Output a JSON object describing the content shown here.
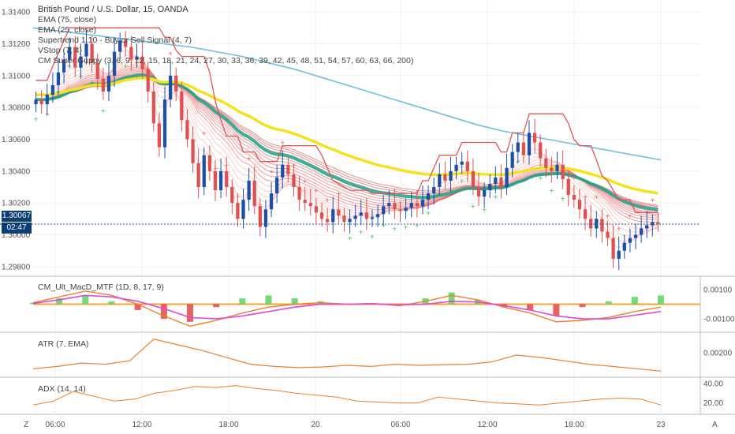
{
  "header": {
    "title": "British Pound / U.S. Dollar, 15, OANDA",
    "indicators": [
      "EMA (75, close)",
      "EMA (25, close)",
      "Supertrend 1.10 - Buy or Sell Signal (4, 7)",
      "VStop (7, 4)",
      "CM Super Guppy (3, 6, 9, 12, 15, 18, 21, 24, 27, 30, 33, 36, 39, 42, 45, 48, 51, 54, 57, 60, 63, 66, 200)"
    ]
  },
  "price_tag": {
    "value": "1.30067",
    "countdown": "02:47"
  },
  "panes": {
    "macd_label": "CM_Ult_MacD_MTF (1D, 8, 17, 9)",
    "atr_label": "ATR (7, EMA)",
    "adx_label": "ADX (14, 14)"
  },
  "corner": {
    "left": "Z",
    "right": "A"
  },
  "colors": {
    "ema75": "#6ec1dc",
    "guppy_up": "#1aa88e",
    "guppy_down": "#e84b4b",
    "yellow": "#f5e21f",
    "supertrend": "#e05555",
    "vstop_up": "#3fb04a",
    "vstop_down": "#e05555",
    "bull": "#1e4fa8",
    "bear": "#e05050",
    "grid": "#eef0f4",
    "current_price": "#1b5a9c"
  },
  "chart_data": [
    {
      "type": "candlestick",
      "title": "British Pound / U.S. Dollar, 15, OANDA",
      "x_ticks": [
        "06:00",
        "12:00",
        "18:00",
        "20",
        "06:00",
        "12:00",
        "18:00",
        "23"
      ],
      "y_ticks": [
        "1.29800",
        "1.30000",
        "1.30200",
        "1.30400",
        "1.30600",
        "1.30800",
        "1.31000",
        "1.31200",
        "1.31400"
      ],
      "ylim": [
        1.2975,
        1.3145
      ],
      "current_price": 1.30067,
      "closes": [
        1.3085,
        1.3082,
        1.3088,
        1.3094,
        1.3102,
        1.311,
        1.3118,
        1.3105,
        1.3112,
        1.312,
        1.3108,
        1.3098,
        1.309,
        1.31,
        1.3115,
        1.3122,
        1.3118,
        1.311,
        1.3112,
        1.3104,
        1.309,
        1.307,
        1.3055,
        1.3085,
        1.31,
        1.309,
        1.3072,
        1.306,
        1.3045,
        1.303,
        1.305,
        1.304,
        1.3028,
        1.304,
        1.303,
        1.302,
        1.301,
        1.3022,
        1.3034,
        1.3018,
        1.3005,
        1.3016,
        1.3026,
        1.3036,
        1.3044,
        1.3038,
        1.303,
        1.3022,
        1.302,
        1.3018,
        1.3014,
        1.301,
        1.3008,
        1.3016,
        1.3012,
        1.3008,
        1.301,
        1.3012,
        1.3014,
        1.301,
        1.3011,
        1.3013,
        1.3018,
        1.302,
        1.3016,
        1.3015,
        1.3017,
        1.302,
        1.3018,
        1.3022,
        1.3026,
        1.303,
        1.3038,
        1.3034,
        1.304,
        1.3044,
        1.3046,
        1.304,
        1.303,
        1.3024,
        1.3028,
        1.3032,
        1.3036,
        1.303,
        1.3042,
        1.3052,
        1.3058,
        1.305,
        1.3064,
        1.3058,
        1.3048,
        1.3042,
        1.304,
        1.3044,
        1.3035,
        1.3025,
        1.3022,
        1.3016,
        1.301,
        1.3004,
        1.301,
        1.3002,
        1.2998,
        1.2985,
        1.299,
        1.2995,
        1.2998,
        1.3,
        1.3004,
        1.3006,
        1.3008,
        1.3007
      ],
      "ema75": [
        1.313,
        1.3128,
        1.3126,
        1.3124,
        1.3122,
        1.312,
        1.3118,
        1.3115,
        1.3112,
        1.3108,
        1.3104,
        1.3099,
        1.3094,
        1.3089,
        1.3084,
        1.3079,
        1.3074,
        1.3069,
        1.3065,
        1.3062,
        1.3059,
        1.3056,
        1.3053,
        1.305,
        1.3047
      ],
      "indicator_ticks": {
        "macd": [
          "0.00100",
          "-0.00100"
        ],
        "atr": [
          "0.00200"
        ],
        "adx": [
          "40.00",
          "20.00"
        ]
      },
      "atr": [
        0.0013,
        0.0014,
        0.00155,
        0.0015,
        0.00165,
        0.0026,
        0.00235,
        0.0021,
        0.0018,
        0.0015,
        0.0014,
        0.00135,
        0.00138,
        0.00145,
        0.0014,
        0.0015,
        0.00145,
        0.00148,
        0.0015,
        0.0016,
        0.0019,
        0.0018,
        0.00165,
        0.0015,
        0.0014,
        0.0013,
        0.0012
      ],
      "adx": [
        18,
        22,
        32,
        27,
        22,
        24,
        30,
        33,
        37,
        36,
        38,
        35,
        33,
        30,
        28,
        26,
        22,
        21,
        20,
        20,
        26,
        24,
        22,
        20,
        19,
        18,
        20,
        22,
        24,
        25,
        24,
        18
      ],
      "macd_line": [
        0.0001,
        0.0005,
        0.0009,
        0.0006,
        0.0,
        -0.0008,
        -0.0015,
        -0.0011,
        -0.0006,
        -0.0002,
        0.0,
        0.0001,
        0.0,
        5e-05,
        -0.0001,
        0.0002,
        0.0006,
        0.0003,
        -0.0002,
        -0.0006,
        -0.0012,
        -0.0011,
        -0.0009,
        -0.0005,
        -0.0002
      ],
      "signal_line": [
        5e-05,
        0.0003,
        0.0006,
        0.0005,
        0.0002,
        -0.0003,
        -0.0009,
        -0.001,
        -0.0008,
        -0.0005,
        -0.0002,
        0.0,
        0.0,
        2e-05,
        -5e-05,
        0.0,
        0.0002,
        0.00015,
        -0.0001,
        -0.0004,
        -0.0008,
        -0.001,
        -0.001,
        -0.00075,
        -0.0005
      ]
    }
  ]
}
